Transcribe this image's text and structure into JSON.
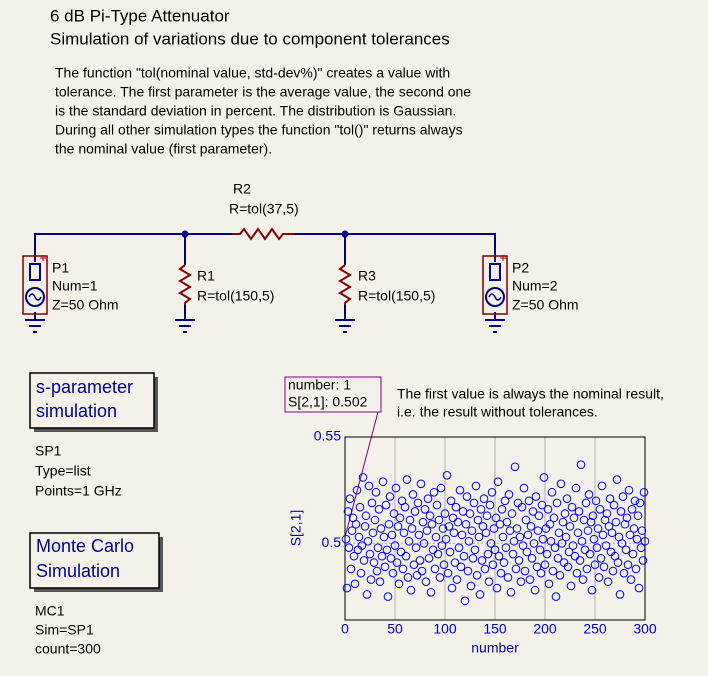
{
  "title": "6 dB Pi-Type Attenuator",
  "subtitle": "Simulation of variations due to component tolerances",
  "description": [
    "The function \"tol(nominal value, std-dev%)\" creates a value with",
    "tolerance. The first parameter is the average value, the second one",
    "is the standard deviation in percent. The distribution is Gaussian.",
    "During all other simulation types the function \"tol()\" returns always",
    "the nominal value (first parameter)."
  ],
  "components": [
    {
      "name": "R2",
      "params": [
        "R=tol(37,5)"
      ]
    },
    {
      "name": "P1",
      "params": [
        "Num=1",
        "Z=50 Ohm"
      ]
    },
    {
      "name": "R1",
      "params": [
        "R=tol(150,5)"
      ]
    },
    {
      "name": "R3",
      "params": [
        "R=tol(150,5)"
      ]
    },
    {
      "name": "P2",
      "params": [
        "Num=2",
        "Z=50 Ohm"
      ]
    }
  ],
  "simulations": [
    {
      "title": [
        "s-parameter",
        "simulation"
      ],
      "name": "SP1",
      "params": [
        "Type=list",
        "Points=1 GHz"
      ]
    },
    {
      "title": [
        "Monte Carlo",
        "Simulation"
      ],
      "name": "MC1",
      "params": [
        "Sim=SP1",
        "count=300"
      ]
    }
  ],
  "marker": [
    "number: 1",
    "S[2,1]: 0.502"
  ],
  "note": [
    "The first value is always the nominal result,",
    "i.e. the result without tolerances."
  ],
  "chart_data": {
    "type": "scatter",
    "xlabel": "number",
    "ylabel": "S[2,1]",
    "color": "#0000ff",
    "grid": true,
    "xlim": [
      0,
      300
    ],
    "xticks": [
      0,
      50,
      100,
      150,
      200,
      250,
      300
    ],
    "ylim": [
      0.464,
      0.55
    ],
    "yticks": [
      0.5,
      0.55
    ],
    "x": [
      1,
      2,
      3,
      4,
      5,
      6,
      7,
      8,
      9,
      10,
      11,
      12,
      13,
      14,
      15,
      16,
      17,
      18,
      19,
      20,
      21,
      22,
      23,
      24,
      25,
      26,
      27,
      28,
      29,
      30,
      31,
      32,
      33,
      34,
      35,
      36,
      37,
      38,
      39,
      40,
      41,
      42,
      43,
      44,
      45,
      46,
      47,
      48,
      49,
      50,
      51,
      52,
      53,
      54,
      55,
      56,
      57,
      58,
      59,
      60,
      61,
      62,
      63,
      64,
      65,
      66,
      67,
      68,
      69,
      70,
      71,
      72,
      73,
      74,
      75,
      76,
      77,
      78,
      79,
      80,
      81,
      82,
      83,
      84,
      85,
      86,
      87,
      88,
      89,
      90,
      91,
      92,
      93,
      94,
      95,
      96,
      97,
      98,
      99,
      100,
      101,
      102,
      103,
      104,
      105,
      106,
      107,
      108,
      109,
      110,
      111,
      112,
      113,
      114,
      115,
      116,
      117,
      118,
      119,
      120,
      121,
      122,
      123,
      124,
      125,
      126,
      127,
      128,
      129,
      130,
      131,
      132,
      133,
      134,
      135,
      136,
      137,
      138,
      139,
      140,
      141,
      142,
      143,
      144,
      145,
      146,
      147,
      148,
      149,
      150,
      151,
      152,
      153,
      154,
      155,
      156,
      157,
      158,
      159,
      160,
      161,
      162,
      163,
      164,
      165,
      166,
      167,
      168,
      169,
      170,
      171,
      172,
      173,
      174,
      175,
      176,
      177,
      178,
      179,
      180,
      181,
      182,
      183,
      184,
      185,
      186,
      187,
      188,
      189,
      190,
      191,
      192,
      193,
      194,
      195,
      196,
      197,
      198,
      199,
      200,
      201,
      202,
      203,
      204,
      205,
      206,
      207,
      208,
      209,
      210,
      211,
      212,
      213,
      214,
      215,
      216,
      217,
      218,
      219,
      220,
      221,
      222,
      223,
      224,
      225,
      226,
      227,
      228,
      229,
      230,
      231,
      232,
      233,
      234,
      235,
      236,
      237,
      238,
      239,
      240,
      241,
      242,
      243,
      244,
      245,
      246,
      247,
      248,
      249,
      250,
      251,
      252,
      253,
      254,
      255,
      256,
      257,
      258,
      259,
      260,
      261,
      262,
      263,
      264,
      265,
      266,
      267,
      268,
      269,
      270,
      271,
      272,
      273,
      274,
      275,
      276,
      277,
      278,
      279,
      280,
      281,
      282,
      283,
      284,
      285,
      286,
      287,
      288,
      289,
      290,
      291,
      292,
      293,
      294,
      295,
      296,
      297,
      298,
      299,
      300
    ],
    "values": [
      0.502,
      0.479,
      0.515,
      0.498,
      0.521,
      0.488,
      0.506,
      0.512,
      0.494,
      0.481,
      0.509,
      0.525,
      0.497,
      0.503,
      0.517,
      0.486,
      0.499,
      0.531,
      0.492,
      0.508,
      0.513,
      0.476,
      0.501,
      0.527,
      0.495,
      0.483,
      0.519,
      0.505,
      0.491,
      0.511,
      0.524,
      0.487,
      0.498,
      0.516,
      0.482,
      0.507,
      0.494,
      0.529,
      0.503,
      0.489,
      0.518,
      0.497,
      0.475,
      0.509,
      0.522,
      0.493,
      0.504,
      0.486,
      0.514,
      0.499,
      0.526,
      0.491,
      0.508,
      0.481,
      0.512,
      0.496,
      0.52,
      0.488,
      0.505,
      0.517,
      0.494,
      0.53,
      0.484,
      0.501,
      0.511,
      0.478,
      0.507,
      0.523,
      0.49,
      0.515,
      0.498,
      0.485,
      0.519,
      0.504,
      0.492,
      0.528,
      0.487,
      0.51,
      0.5,
      0.516,
      0.482,
      0.506,
      0.521,
      0.493,
      0.513,
      0.477,
      0.509,
      0.497,
      0.524,
      0.488,
      0.503,
      0.518,
      0.495,
      0.511,
      0.484,
      0.526,
      0.499,
      0.507,
      0.49,
      0.514,
      0.502,
      0.532,
      0.486,
      0.508,
      0.496,
      0.52,
      0.479,
      0.512,
      0.505,
      0.491,
      0.517,
      0.483,
      0.51,
      0.498,
      0.525,
      0.489,
      0.504,
      0.515,
      0.494,
      0.473,
      0.509,
      0.522,
      0.487,
      0.501,
      0.514,
      0.48,
      0.506,
      0.493,
      0.519,
      0.497,
      0.527,
      0.485,
      0.511,
      0.503,
      0.476,
      0.516,
      0.492,
      0.508,
      0.521,
      0.488,
      0.505,
      0.513,
      0.495,
      0.482,
      0.518,
      0.5,
      0.524,
      0.49,
      0.507,
      0.497,
      0.512,
      0.479,
      0.529,
      0.494,
      0.509,
      0.486,
      0.516,
      0.503,
      0.491,
      0.52,
      0.498,
      0.51,
      0.484,
      0.523,
      0.506,
      0.477,
      0.514,
      0.495,
      0.501,
      0.536,
      0.488,
      0.507,
      0.519,
      0.492,
      0.503,
      0.482,
      0.517,
      0.499,
      0.526,
      0.487,
      0.511,
      0.496,
      0.504,
      0.52,
      0.483,
      0.508,
      0.493,
      0.515,
      0.5,
      0.478,
      0.522,
      0.489,
      0.506,
      0.513,
      0.497,
      0.486,
      0.518,
      0.502,
      0.531,
      0.49,
      0.507,
      0.495,
      0.516,
      0.481,
      0.509,
      0.501,
      0.524,
      0.487,
      0.512,
      0.498,
      0.475,
      0.519,
      0.493,
      0.505,
      0.485,
      0.528,
      0.5,
      0.51,
      0.491,
      0.514,
      0.503,
      0.521,
      0.489,
      0.496,
      0.508,
      0.48,
      0.517,
      0.499,
      0.512,
      0.494,
      0.526,
      0.486,
      0.505,
      0.515,
      0.492,
      0.537,
      0.501,
      0.483,
      0.511,
      0.497,
      0.519,
      0.488,
      0.506,
      0.523,
      0.495,
      0.51,
      0.478,
      0.513,
      0.502,
      0.49,
      0.52,
      0.498,
      0.507,
      0.484,
      0.516,
      0.493,
      0.527,
      0.504,
      0.489,
      0.511,
      0.499,
      0.514,
      0.482,
      0.508,
      0.521,
      0.496,
      0.505,
      0.487,
      0.518,
      0.494,
      0.51,
      0.53,
      0.491,
      0.503,
      0.476,
      0.515,
      0.5,
      0.522,
      0.486,
      0.509,
      0.497,
      0.512,
      0.49,
      0.525,
      0.504,
      0.483,
      0.516,
      0.495,
      0.507,
      0.52,
      0.488,
      0.502,
      0.513,
      0.479,
      0.519,
      0.498,
      0.506,
      0.492,
      0.524,
      0.501
    ]
  }
}
